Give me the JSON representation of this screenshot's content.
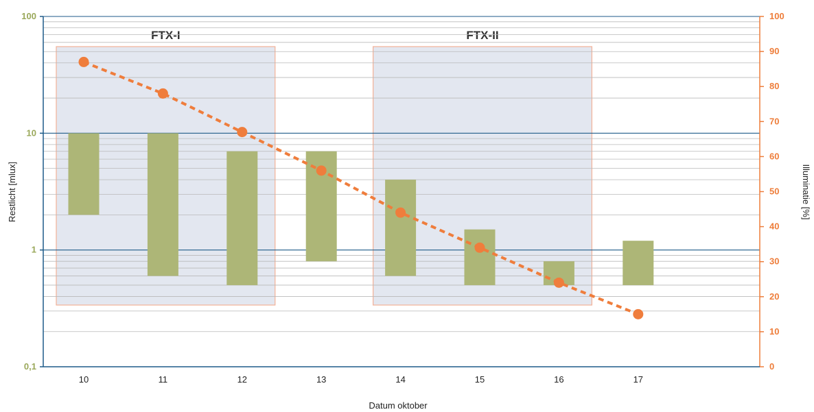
{
  "chart_data": {
    "type": "bar",
    "categories": [
      "10",
      "11",
      "12",
      "13",
      "14",
      "15",
      "16",
      "17"
    ],
    "xlabel": "Datum oktober",
    "ylabel": "Restlicht [mlux]",
    "y2label": "Illuminatie [%]",
    "yscale": "log",
    "ylim": [
      0.1,
      100
    ],
    "y2lim": [
      0,
      100
    ],
    "y_ticks": [
      {
        "value": 0.1,
        "label": "0,1"
      },
      {
        "value": 1,
        "label": "1"
      },
      {
        "value": 10,
        "label": "10"
      },
      {
        "value": 100,
        "label": "100"
      }
    ],
    "y2_ticks": [
      "0",
      "10",
      "20",
      "30",
      "40",
      "50",
      "60",
      "70",
      "80",
      "90",
      "100"
    ],
    "ranges": [
      {
        "low": 2.0,
        "high": 10
      },
      {
        "low": 0.6,
        "high": 10
      },
      {
        "low": 0.5,
        "high": 7
      },
      {
        "low": 0.8,
        "high": 7
      },
      {
        "low": 0.6,
        "high": 4
      },
      {
        "low": 0.5,
        "high": 1.5
      },
      {
        "low": 0.5,
        "high": 0.8
      },
      {
        "low": 0.5,
        "high": 1.2
      }
    ],
    "illumination": [
      87,
      78,
      67,
      56,
      44,
      34,
      24,
      15
    ],
    "periods": [
      {
        "label": "FTX-I",
        "start": "10",
        "end": "12"
      },
      {
        "label": "FTX-II",
        "start": "14",
        "end": "16"
      }
    ],
    "colors": {
      "bar": "#adb677",
      "line": "#ef7d3c",
      "period_fill": "#e3e7f0",
      "period_border": "#f3b197",
      "major_grid": "#1d5a88",
      "minor_grid": "#b9b9b9",
      "left_axis": "#1d5a88",
      "right_axis": "#ee7d3a"
    }
  }
}
